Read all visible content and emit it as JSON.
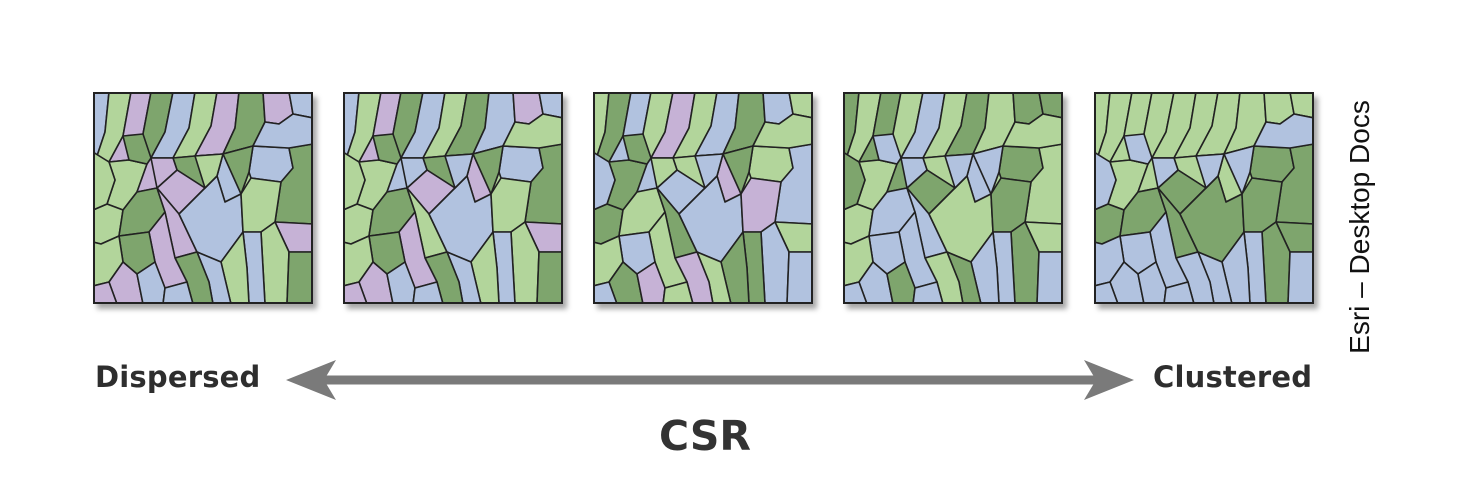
{
  "colors": {
    "dark_green": "#7ea56d",
    "light_green": "#b2d59b",
    "blue": "#b1c2df",
    "purple": "#c6b2d6",
    "outline": "#222222",
    "arrow": "#7a7a7a"
  },
  "panels": [
    {
      "name": "dispersed",
      "pattern": [
        2,
        1,
        3,
        0,
        2,
        1,
        3,
        0,
        3,
        2,
        1,
        0,
        1,
        3,
        0,
        2,
        2,
        0,
        3,
        1,
        0,
        3,
        2,
        1,
        3,
        1,
        0,
        2,
        1,
        2,
        0,
        3,
        0,
        1,
        3,
        2,
        2,
        3,
        1,
        0,
        1,
        0,
        2,
        3
      ]
    },
    {
      "name": "dispersed-moderate",
      "pattern": [
        2,
        1,
        3,
        0,
        2,
        1,
        0,
        2,
        3,
        2,
        1,
        0,
        1,
        2,
        0,
        3,
        2,
        0,
        3,
        1,
        0,
        1,
        2,
        1,
        3,
        1,
        0,
        2,
        1,
        2,
        0,
        3,
        0,
        1,
        3,
        2,
        2,
        3,
        1,
        0,
        2,
        0,
        1,
        2
      ]
    },
    {
      "name": "random",
      "pattern": [
        1,
        0,
        2,
        1,
        3,
        1,
        2,
        0,
        2,
        1,
        1,
        0,
        0,
        2,
        1,
        3,
        1,
        2,
        2,
        0,
        1,
        0,
        2,
        3,
        1,
        2,
        2,
        0,
        0,
        1,
        3,
        1,
        2,
        1,
        0,
        3,
        1,
        2,
        2,
        0,
        2,
        0,
        1,
        1
      ]
    },
    {
      "name": "clustered-moderate",
      "pattern": [
        0,
        1,
        0,
        1,
        2,
        1,
        0,
        1,
        0,
        0,
        1,
        2,
        1,
        0,
        1,
        2,
        0,
        1,
        0,
        1,
        2,
        2,
        1,
        0,
        1,
        0,
        2,
        2,
        2,
        0,
        1,
        2,
        2,
        1,
        2,
        0,
        2,
        2,
        0,
        2,
        2,
        2,
        1,
        2
      ]
    },
    {
      "name": "clustered",
      "pattern": [
        1,
        1,
        1,
        1,
        1,
        1,
        1,
        1,
        1,
        1,
        1,
        1,
        1,
        1,
        1,
        1,
        0,
        0,
        0,
        0,
        0,
        0,
        0,
        0,
        0,
        0,
        2,
        2,
        2,
        2,
        2,
        2,
        2,
        2,
        2,
        2,
        2,
        2,
        2,
        2,
        2,
        2,
        2,
        2
      ]
    }
  ],
  "labels": {
    "left": "Dispersed",
    "right": "Clustered",
    "center": "CSR"
  },
  "credit": "Esri – Desktop Docs"
}
